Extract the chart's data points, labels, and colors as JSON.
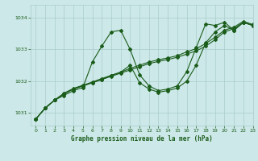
{
  "title": "Graphe pression niveau de la mer (hPa)",
  "bg_color": "#cce8e8",
  "grid_color": "#aacccc",
  "line_color": "#1a5c1a",
  "xlim": [
    -0.5,
    23
  ],
  "ylim": [
    1030.6,
    1034.4
  ],
  "yticks": [
    1031,
    1032,
    1033,
    1034
  ],
  "xticks": [
    0,
    1,
    2,
    3,
    4,
    5,
    6,
    7,
    8,
    9,
    10,
    11,
    12,
    13,
    14,
    15,
    16,
    17,
    18,
    19,
    20,
    21,
    22,
    23
  ],
  "series_wiggly": {
    "x": [
      0,
      1,
      2,
      3,
      4,
      5,
      6,
      7,
      8,
      9,
      10,
      11,
      12,
      13,
      14,
      15,
      16,
      17,
      18,
      19,
      20,
      21,
      22,
      23
    ],
    "y": [
      1030.8,
      1031.15,
      1031.4,
      1031.55,
      1031.7,
      1031.8,
      1032.6,
      1033.1,
      1033.55,
      1033.6,
      1033.0,
      1032.2,
      1031.85,
      1031.7,
      1031.75,
      1031.85,
      1032.3,
      1033.05,
      1033.8,
      1033.75,
      1033.85,
      1033.6,
      1033.85,
      1033.75
    ]
  },
  "series_smooth1": {
    "x": [
      0,
      1,
      2,
      3,
      4,
      5,
      6,
      7,
      8,
      9,
      10,
      11,
      12,
      13,
      14,
      15,
      16,
      17,
      18,
      19,
      20,
      21,
      22,
      23
    ],
    "y": [
      1030.8,
      1031.15,
      1031.4,
      1031.6,
      1031.75,
      1031.85,
      1031.95,
      1032.05,
      1032.15,
      1032.25,
      1032.35,
      1032.45,
      1032.55,
      1032.62,
      1032.68,
      1032.75,
      1032.85,
      1032.95,
      1033.1,
      1033.3,
      1033.55,
      1033.65,
      1033.85,
      1033.75
    ]
  },
  "series_smooth2": {
    "x": [
      0,
      1,
      2,
      3,
      4,
      5,
      6,
      7,
      8,
      9,
      10,
      11,
      12,
      13,
      14,
      15,
      16,
      17,
      18,
      19,
      20,
      21,
      22,
      23
    ],
    "y": [
      1030.8,
      1031.15,
      1031.4,
      1031.62,
      1031.77,
      1031.87,
      1031.97,
      1032.08,
      1032.18,
      1032.28,
      1032.4,
      1032.5,
      1032.6,
      1032.67,
      1032.73,
      1032.8,
      1032.92,
      1033.02,
      1033.18,
      1033.38,
      1033.6,
      1033.7,
      1033.88,
      1033.78
    ]
  },
  "series_dip": {
    "x": [
      0,
      1,
      2,
      3,
      4,
      5,
      6,
      7,
      8,
      9,
      10,
      11,
      12,
      13,
      14,
      15,
      16,
      17,
      18,
      19,
      20,
      21,
      22,
      23
    ],
    "y": [
      1030.8,
      1031.15,
      1031.4,
      1031.6,
      1031.75,
      1031.85,
      1031.95,
      1032.05,
      1032.18,
      1032.28,
      1032.5,
      1031.95,
      1031.75,
      1031.65,
      1031.7,
      1031.78,
      1032.0,
      1032.5,
      1033.2,
      1033.55,
      1033.75,
      1033.6,
      1033.85,
      1033.75
    ]
  }
}
